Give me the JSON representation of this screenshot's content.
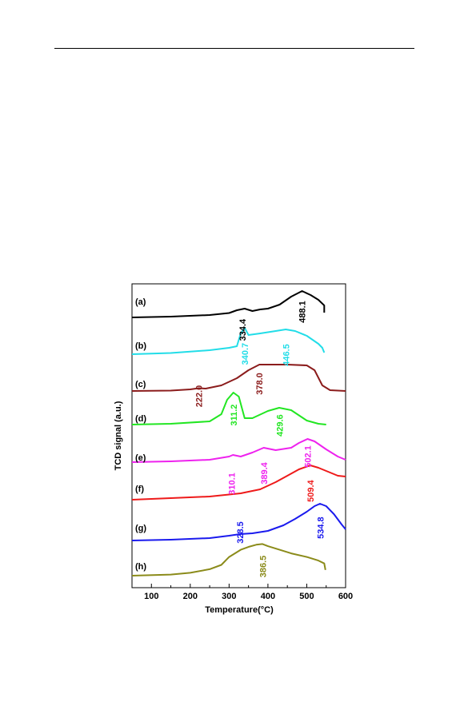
{
  "chart_data": {
    "type": "line",
    "xlabel": "Temperature(°C)",
    "ylabel": "TCD signal (a.u.)",
    "xlim": [
      50,
      600
    ],
    "xticks": [
      100,
      200,
      300,
      400,
      500,
      600
    ],
    "grid": false,
    "series": [
      {
        "name": "(a)",
        "color": "#000000",
        "x": [
          50,
          150,
          250,
          300,
          320,
          340,
          360,
          380,
          400,
          430,
          460,
          488,
          510,
          530,
          545,
          545
        ],
        "y": [
          0.0,
          0.1,
          0.3,
          0.55,
          0.9,
          1.1,
          0.8,
          1.0,
          1.1,
          1.6,
          2.6,
          3.3,
          2.8,
          2.2,
          1.5,
          0.6
        ],
        "peaks": [
          {
            "t": 334.4,
            "label": "334.4"
          },
          {
            "t": 488.1,
            "label": "488.1"
          }
        ]
      },
      {
        "name": "(b)",
        "color": "#22dde8",
        "x": [
          50,
          150,
          250,
          300,
          320,
          330,
          340,
          350,
          380,
          420,
          446,
          470,
          500,
          530,
          540,
          545
        ],
        "y": [
          0.0,
          0.15,
          0.5,
          0.8,
          1.0,
          2.6,
          3.3,
          2.4,
          2.6,
          2.9,
          3.1,
          2.9,
          2.3,
          1.3,
          0.8,
          0.2
        ],
        "peaks": [
          {
            "t": 340.7,
            "label": "340.7"
          },
          {
            "t": 446.5,
            "label": "446.5"
          }
        ]
      },
      {
        "name": "(c)",
        "color": "#8b1c1c",
        "x": [
          50,
          150,
          200,
          222,
          240,
          280,
          320,
          350,
          378,
          400,
          450,
          500,
          520,
          540,
          560,
          600
        ],
        "y": [
          0.0,
          0.05,
          0.2,
          0.35,
          0.3,
          0.7,
          1.6,
          2.6,
          3.3,
          3.3,
          3.3,
          3.2,
          2.6,
          0.7,
          0.1,
          0.0
        ],
        "peaks": [
          {
            "t": 222.0,
            "label": "222.0"
          },
          {
            "t": 378.0,
            "label": "378.0"
          }
        ]
      },
      {
        "name": "(d)",
        "color": "#22e622",
        "x": [
          50,
          150,
          250,
          280,
          295,
          311,
          325,
          340,
          360,
          400,
          429,
          460,
          500,
          530,
          550
        ],
        "y": [
          0.1,
          0.2,
          0.5,
          1.4,
          3.2,
          4.1,
          3.6,
          0.9,
          0.9,
          1.8,
          2.2,
          1.9,
          0.6,
          0.2,
          0.1
        ],
        "peaks": [
          {
            "t": 311.2,
            "label": "311.2"
          },
          {
            "t": 429.6,
            "label": "429.6"
          }
        ]
      },
      {
        "name": "(e)",
        "color": "#ee22ee",
        "x": [
          50,
          150,
          250,
          300,
          310,
          330,
          360,
          389,
          420,
          460,
          480,
          502,
          520,
          550,
          580,
          600
        ],
        "y": [
          0.0,
          0.1,
          0.3,
          0.7,
          0.9,
          0.7,
          1.2,
          1.8,
          1.5,
          1.8,
          2.4,
          2.9,
          2.6,
          1.6,
          0.7,
          0.3
        ],
        "peaks": [
          {
            "t": 310.1,
            "label": "310.1"
          },
          {
            "t": 389.4,
            "label": "389.4"
          },
          {
            "t": 502.1,
            "label": "502.1"
          }
        ]
      },
      {
        "name": "(f)",
        "color": "#ee1a1a",
        "x": [
          50,
          150,
          250,
          330,
          380,
          420,
          450,
          480,
          509,
          530,
          560,
          580,
          600
        ],
        "y": [
          0.0,
          0.2,
          0.4,
          0.8,
          1.3,
          2.2,
          3.0,
          3.8,
          4.3,
          4.0,
          3.4,
          3.0,
          2.9
        ],
        "peaks": [
          {
            "t": 509.4,
            "label": "509.4"
          }
        ]
      },
      {
        "name": "(g)",
        "color": "#1a1aee",
        "x": [
          50,
          150,
          250,
          300,
          328,
          360,
          400,
          440,
          470,
          500,
          520,
          534,
          550,
          570,
          590,
          600
        ],
        "y": [
          0.0,
          0.1,
          0.3,
          0.6,
          0.8,
          0.9,
          1.2,
          1.9,
          2.7,
          3.6,
          4.3,
          4.6,
          4.3,
          3.3,
          2.0,
          1.4
        ],
        "peaks": [
          {
            "t": 328.5,
            "label": "328.5"
          },
          {
            "t": 534.8,
            "label": "534.8"
          }
        ]
      },
      {
        "name": "(h)",
        "color": "#8b8b1a",
        "x": [
          50,
          150,
          200,
          250,
          280,
          300,
          330,
          350,
          370,
          386,
          400,
          430,
          460,
          500,
          530,
          545,
          548
        ],
        "y": [
          0.0,
          0.15,
          0.4,
          0.9,
          1.5,
          2.6,
          3.6,
          4.0,
          4.3,
          4.4,
          4.1,
          3.6,
          3.1,
          2.6,
          2.1,
          1.7,
          0.8
        ],
        "peaks": [
          {
            "t": 386.5,
            "label": "386.5"
          }
        ]
      }
    ]
  }
}
